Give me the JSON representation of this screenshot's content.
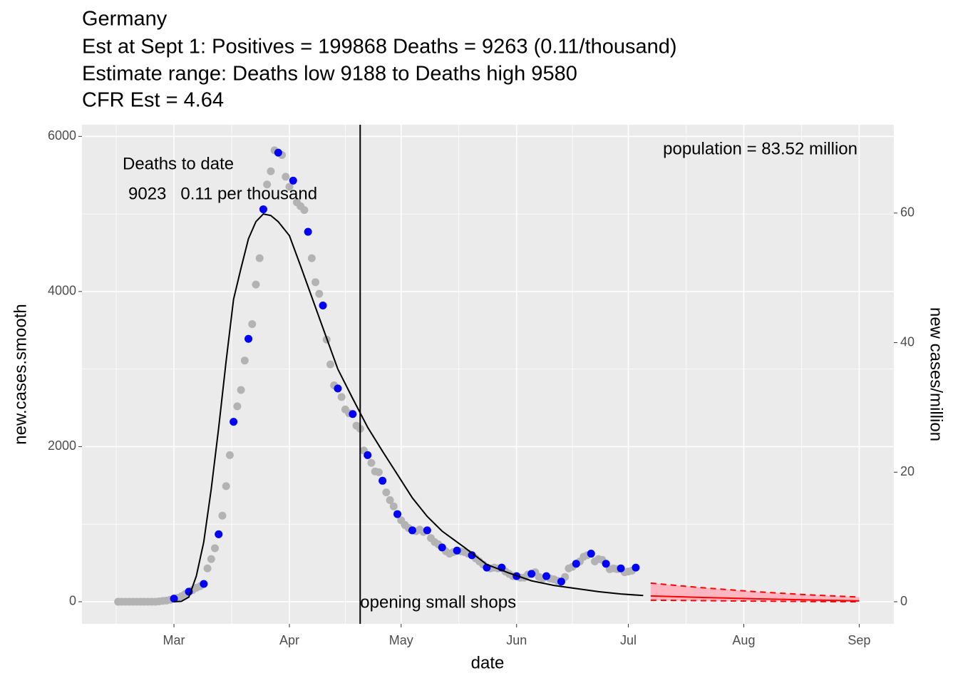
{
  "chart_data": {
    "type": "scatter",
    "title": [
      "Germany",
      "Est at Sept 1: Positives = 199868 Deaths = 9263 (0.11/thousand)",
      "Estimate range: Deaths low 9188 to Deaths high 9580",
      "CFR Est = 4.64"
    ],
    "x_label": "date",
    "y_label": "new.cases.smooth",
    "y2_label": "new cases/million",
    "xlim": [
      -24.7,
      193.3
    ],
    "xticks": [
      {
        "value": 0,
        "label": "Mar"
      },
      {
        "value": 31,
        "label": "Apr"
      },
      {
        "value": 61,
        "label": "May"
      },
      {
        "value": 92,
        "label": "Jun"
      },
      {
        "value": 122,
        "label": "Jul"
      },
      {
        "value": 153,
        "label": "Aug"
      },
      {
        "value": 184,
        "label": "Sep"
      }
    ],
    "ylim": [
      -285,
      6150
    ],
    "yticks": [
      0,
      2000,
      4000,
      6000
    ],
    "y2lim": [
      -3.41,
      73.63
    ],
    "y2ticks": [
      0,
      20,
      40,
      60
    ],
    "grid": true,
    "series": [
      {
        "style": "points",
        "color": "#b3b3b3",
        "x": [
          -15,
          -14,
          -13,
          -12,
          -11,
          -10,
          -9,
          -8,
          -7,
          -6,
          -5,
          -4,
          -3,
          -2,
          -1,
          0,
          1,
          2,
          3,
          4,
          5,
          6,
          7,
          8,
          9,
          10,
          11,
          12,
          13,
          14,
          15,
          16,
          17,
          18,
          19,
          20,
          21,
          22,
          23,
          24,
          25,
          26,
          27,
          28,
          29,
          30,
          31,
          32,
          33,
          34,
          35,
          36,
          37,
          38,
          39,
          40,
          41,
          42,
          43,
          44,
          45,
          46,
          47,
          48,
          49,
          50,
          51,
          52,
          53,
          54,
          55,
          56,
          57,
          58,
          59,
          60,
          61,
          62,
          63,
          64,
          65,
          66,
          67,
          68,
          69,
          70,
          71,
          72,
          73,
          74,
          75,
          76,
          77,
          78,
          79,
          80,
          81,
          82,
          83,
          84,
          85,
          86,
          87,
          88,
          89,
          90,
          91,
          92,
          93,
          94,
          95,
          96,
          97,
          98,
          99,
          100,
          101,
          102,
          103,
          104,
          105,
          106,
          107,
          108,
          109,
          110,
          111,
          112,
          113,
          114,
          115,
          116,
          117,
          118,
          119,
          120,
          121,
          122,
          123
        ],
        "values": [
          0,
          0,
          0,
          0,
          0,
          0,
          0,
          0,
          0,
          0,
          0,
          5,
          10,
          15,
          25,
          40,
          50,
          70,
          100,
          130,
          150,
          180,
          200,
          230,
          430,
          550,
          690,
          870,
          1110,
          1490,
          1890,
          2320,
          2520,
          2730,
          3110,
          3390,
          3580,
          4090,
          4430,
          5060,
          5380,
          5550,
          5820,
          5790,
          5760,
          5480,
          5350,
          5430,
          5150,
          5100,
          5050,
          4770,
          4430,
          4120,
          3970,
          3820,
          3380,
          3060,
          2790,
          2750,
          2640,
          2480,
          2430,
          2420,
          2270,
          2230,
          1950,
          1890,
          1790,
          1680,
          1670,
          1560,
          1410,
          1310,
          1230,
          1130,
          1050,
          990,
          950,
          920,
          910,
          930,
          900,
          920,
          820,
          770,
          740,
          700,
          650,
          620,
          640,
          660,
          650,
          640,
          620,
          600,
          560,
          520,
          480,
          440,
          430,
          440,
          430,
          440,
          390,
          360,
          330,
          330,
          310,
          310,
          350,
          360,
          380,
          320,
          300,
          330,
          300,
          290,
          270,
          260,
          320,
          430,
          450,
          490,
          520,
          580,
          600,
          620,
          520,
          550,
          540,
          490,
          420,
          430,
          420,
          430,
          380,
          390,
          400
        ]
      },
      {
        "style": "points",
        "color": "#0000ff",
        "x": [
          0,
          4,
          8,
          12,
          16,
          20,
          24,
          28,
          32,
          36,
          40,
          44,
          48,
          52,
          56,
          60,
          64,
          68,
          72,
          76,
          80,
          84,
          88,
          92,
          96,
          100,
          104,
          108,
          112,
          116,
          120,
          124
        ],
        "values": [
          40,
          130,
          230,
          870,
          2320,
          3390,
          5060,
          5790,
          5430,
          4770,
          3820,
          2750,
          2420,
          1890,
          1560,
          1130,
          920,
          920,
          700,
          660,
          600,
          440,
          440,
          330,
          360,
          330,
          260,
          490,
          620,
          490,
          430,
          440
        ]
      },
      {
        "style": "line",
        "color": "#000000",
        "x": [
          0,
          2,
          4,
          6,
          8,
          10,
          12,
          14,
          16,
          18,
          20,
          22,
          24,
          26,
          28,
          31,
          34,
          37,
          40,
          44,
          48,
          52,
          56,
          60,
          64,
          68,
          72,
          78,
          84,
          90,
          96,
          102,
          108,
          114,
          120,
          126
        ],
        "values": [
          0,
          5,
          60,
          330,
          770,
          1450,
          2240,
          3100,
          3900,
          4300,
          4680,
          4900,
          5000,
          4980,
          4900,
          4720,
          4330,
          3930,
          3530,
          3000,
          2620,
          2250,
          1940,
          1640,
          1340,
          1100,
          910,
          700,
          480,
          370,
          270,
          210,
          170,
          130,
          100,
          80
        ]
      }
    ],
    "projection": {
      "x": [
        128,
        142,
        156,
        170,
        184
      ],
      "center": [
        75,
        55,
        38,
        24,
        12
      ],
      "upper": [
        240,
        180,
        130,
        90,
        60
      ],
      "lower": [
        20,
        14,
        8,
        3,
        0
      ],
      "color": "#ff0000",
      "fill": "#ffb6c1"
    },
    "vline": {
      "x": 50,
      "label": "opening small shops"
    },
    "annotations": [
      {
        "text": "Deaths to date"
      },
      {
        "text": "9023   0.11 per thousand"
      },
      {
        "text": "population = 83.52 million"
      }
    ]
  }
}
